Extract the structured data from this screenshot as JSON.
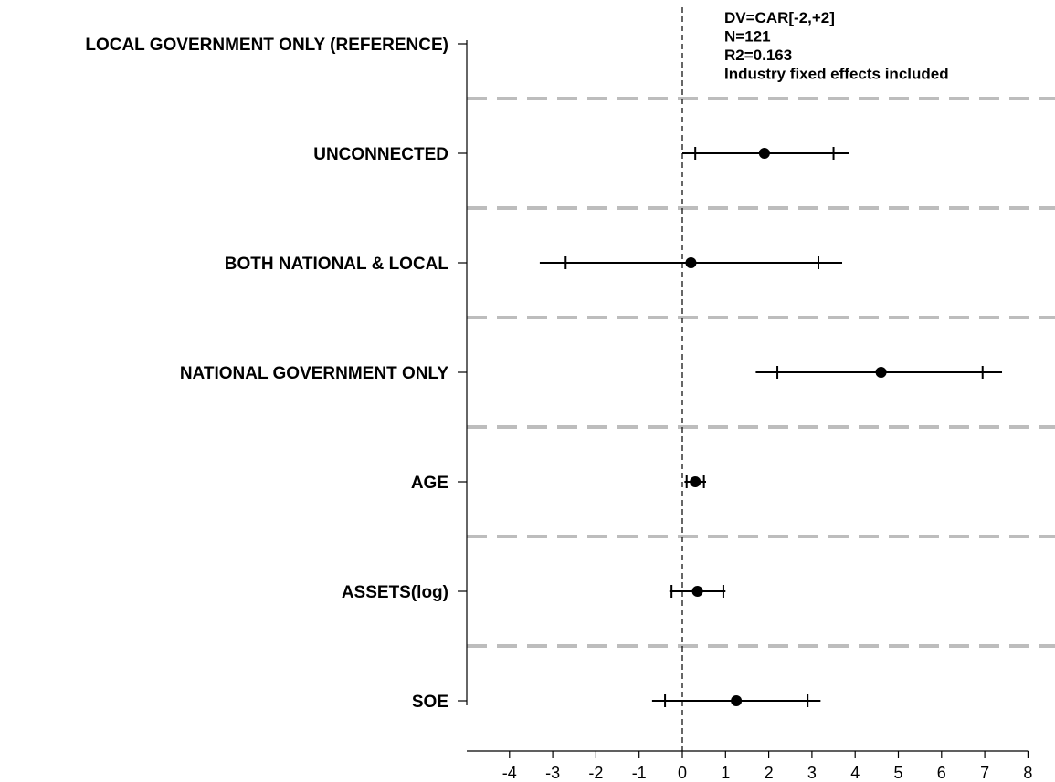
{
  "chart_data": {
    "type": "coefficient-plot",
    "title": "",
    "xlabel": "",
    "ylabel": "",
    "xlim": [
      -5,
      8
    ],
    "x_ticks": [
      -4,
      -3,
      -2,
      -1,
      0,
      1,
      2,
      3,
      4,
      5,
      6,
      7,
      8
    ],
    "reference_line_x": 0,
    "grid": "dashed separators between rows",
    "annotations": [
      "DV=CAR[-2,+2]",
      "N=121",
      "R2=0.163",
      "Industry fixed effects included"
    ],
    "rows": [
      {
        "label": "LOCAL GOVERNMENT ONLY (REFERENCE)",
        "estimate": null,
        "ci90": null,
        "ci95": null
      },
      {
        "label": "UNCONNECTED",
        "estimate": 1.9,
        "ci90": [
          0.3,
          3.5
        ],
        "ci95": [
          0.0,
          3.85
        ]
      },
      {
        "label": "BOTH NATIONAL & LOCAL",
        "estimate": 0.2,
        "ci90": [
          -2.7,
          3.15
        ],
        "ci95": [
          -3.3,
          3.7
        ]
      },
      {
        "label": "NATIONAL GOVERNMENT ONLY",
        "estimate": 4.6,
        "ci90": [
          2.2,
          6.95
        ],
        "ci95": [
          1.7,
          7.4
        ]
      },
      {
        "label": "AGE",
        "estimate": 0.3,
        "ci90": [
          0.1,
          0.5
        ],
        "ci95": [
          0.05,
          0.55
        ]
      },
      {
        "label": "ASSETS(log)",
        "estimate": 0.35,
        "ci90": [
          -0.25,
          0.95
        ],
        "ci95": [
          -0.3,
          1.0
        ]
      },
      {
        "label": "SOE",
        "estimate": 1.25,
        "ci90": [
          -0.4,
          2.9
        ],
        "ci95": [
          -0.7,
          3.2
        ]
      }
    ]
  }
}
